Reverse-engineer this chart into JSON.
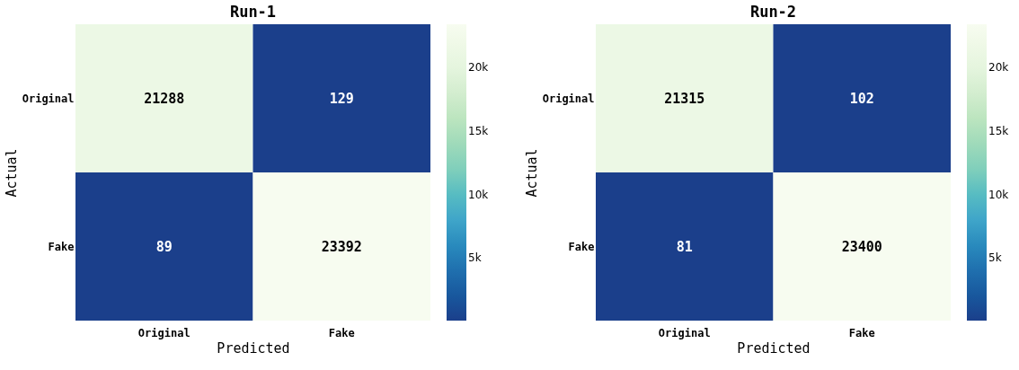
{
  "chart_data": [
    {
      "type": "heatmap",
      "title": "Run-1",
      "xlabel": "Predicted",
      "ylabel": "Actual",
      "categories": [
        "Original",
        "Fake"
      ],
      "y_categories": [
        "Original",
        "Fake"
      ],
      "cells": [
        [
          21288,
          129
        ],
        [
          89,
          23392
        ]
      ],
      "clim": [
        89,
        23392
      ],
      "cticks": [
        {
          "value": 5000,
          "label": "5k"
        },
        {
          "value": 10000,
          "label": "10k"
        },
        {
          "value": 15000,
          "label": "15k"
        },
        {
          "value": 20000,
          "label": "20k"
        }
      ],
      "data_labels": true
    },
    {
      "type": "heatmap",
      "title": "Run-2",
      "xlabel": "Predicted",
      "ylabel": "Actual",
      "categories": [
        "Original",
        "Fake"
      ],
      "y_categories": [
        "Original",
        "Fake"
      ],
      "cells": [
        [
          21315,
          102
        ],
        [
          81,
          23400
        ]
      ],
      "clim": [
        81,
        23400
      ],
      "cticks": [
        {
          "value": 5000,
          "label": "5k"
        },
        {
          "value": 10000,
          "label": "10k"
        },
        {
          "value": 15000,
          "label": "15k"
        },
        {
          "value": 20000,
          "label": "20k"
        }
      ],
      "data_labels": true
    }
  ]
}
